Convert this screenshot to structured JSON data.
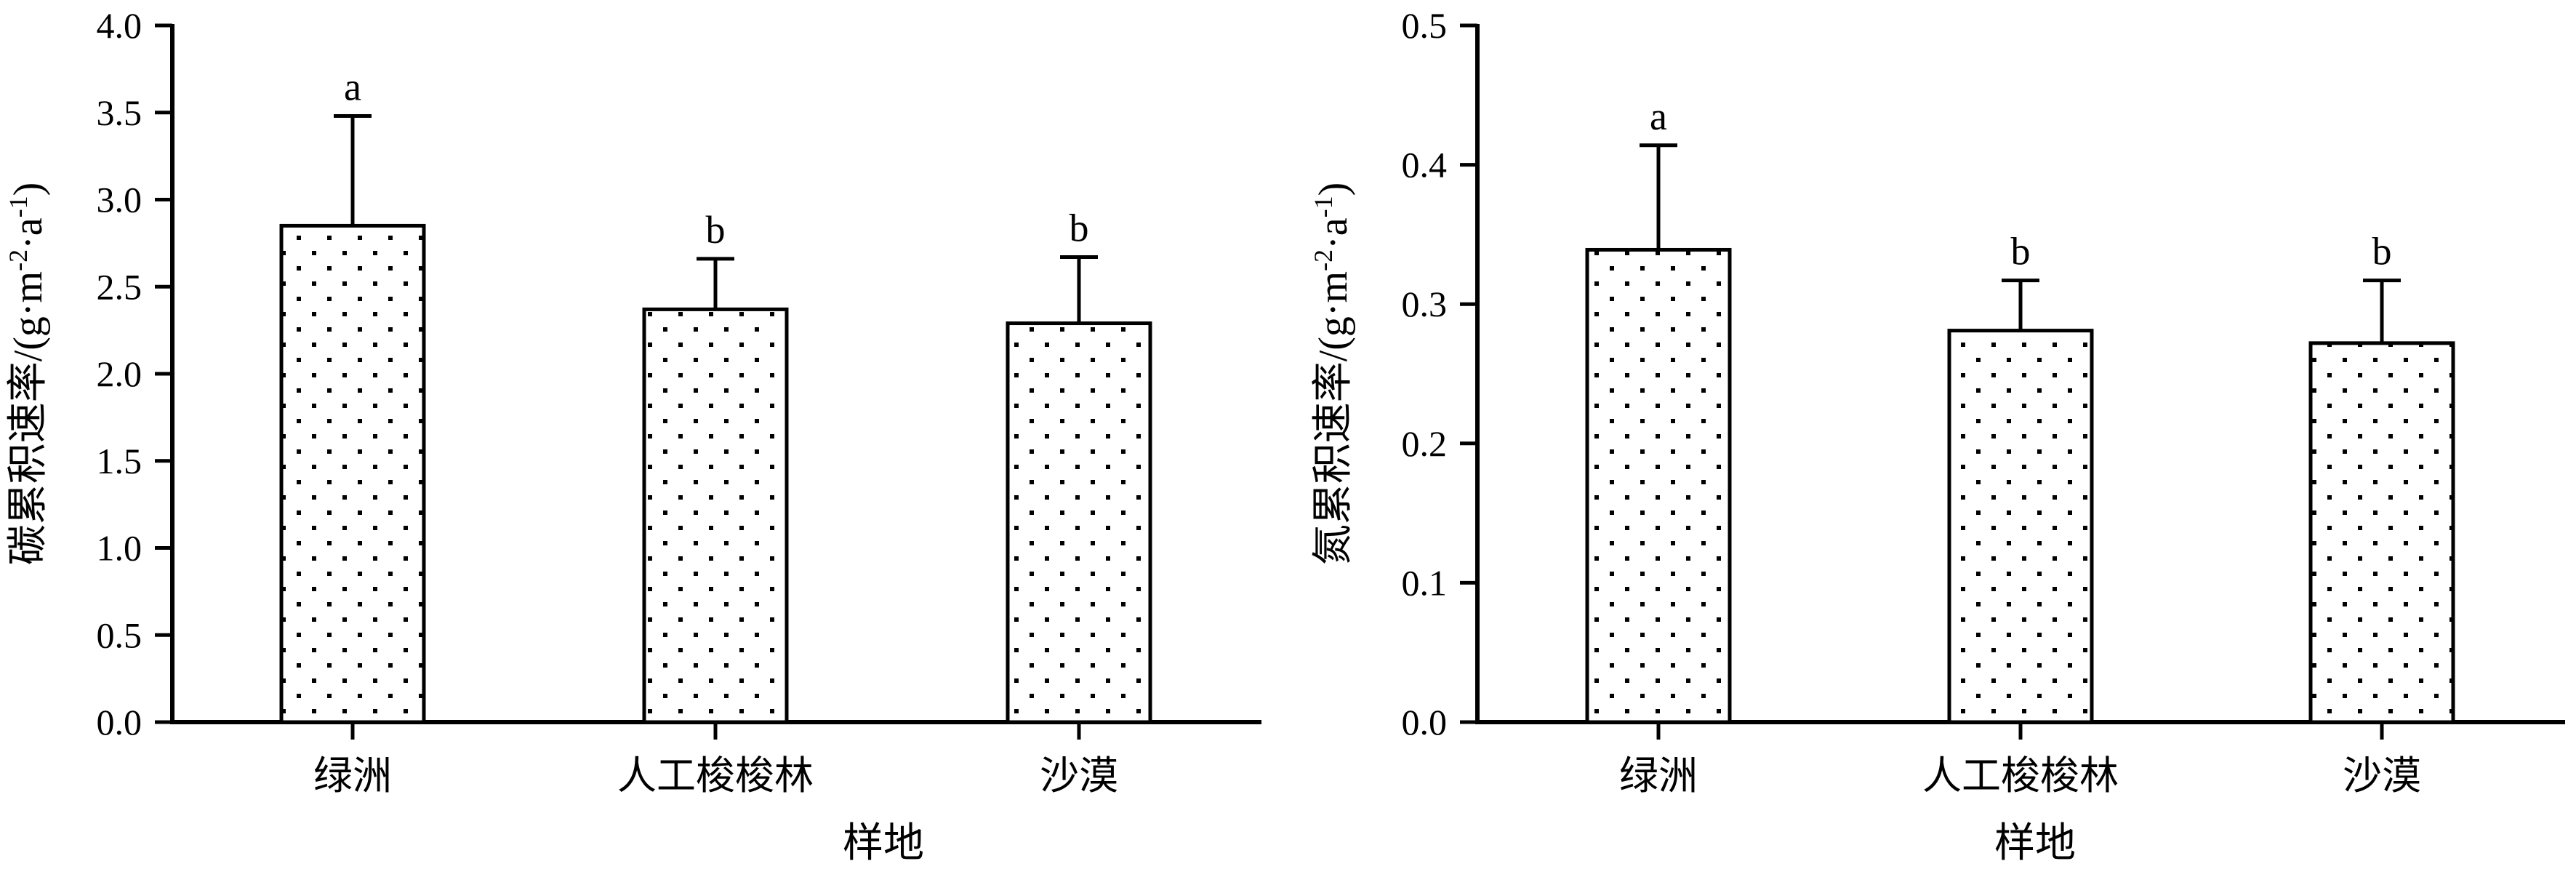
{
  "chart_data": [
    {
      "type": "bar",
      "categories": [
        "绿洲",
        "人工梭梭林",
        "沙漠"
      ],
      "values": [
        2.85,
        2.37,
        2.29
      ],
      "errors": [
        0.63,
        0.29,
        0.38
      ],
      "significance": [
        "a",
        "b",
        "b"
      ],
      "xlabel": "样地",
      "ylabel": "碳累积速率/(g·m-2·a-1)",
      "ylim": [
        0,
        4.0
      ],
      "yticks": [
        "0.0",
        "0.5",
        "1.0",
        "1.5",
        "2.0",
        "2.5",
        "3.0",
        "3.5",
        "4.0"
      ],
      "bar_fill": "white with black dot pattern",
      "grid": false
    },
    {
      "type": "bar",
      "categories": [
        "绿洲",
        "人工梭梭林",
        "沙漠"
      ],
      "values": [
        0.339,
        0.281,
        0.272
      ],
      "errors": [
        0.075,
        0.036,
        0.045
      ],
      "significance": [
        "a",
        "b",
        "b"
      ],
      "xlabel": "样地",
      "ylabel": "氮累积速率/(g·m-2·a-1)",
      "ylim": [
        0,
        0.5
      ],
      "yticks": [
        "0.0",
        "0.1",
        "0.2",
        "0.3",
        "0.4",
        "0.5"
      ],
      "bar_fill": "white with black dot pattern",
      "grid": false
    }
  ]
}
